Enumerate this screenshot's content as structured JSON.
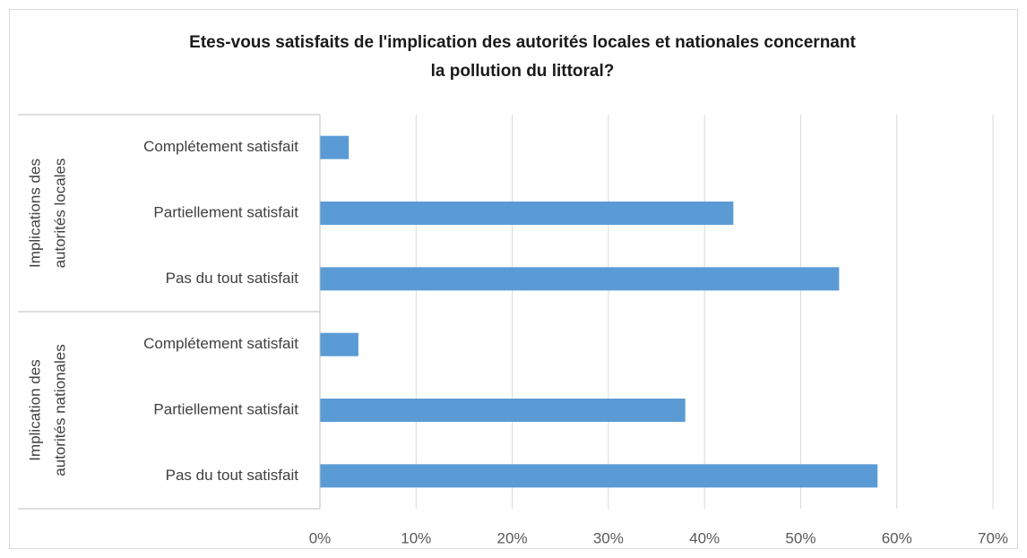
{
  "chart_data": {
    "type": "grouped-hbar",
    "title": [
      "Etes-vous satisfaits de l'implication des autorités locales et nationales concernant",
      "la pollution du littoral?"
    ],
    "color": "#5b9bd5",
    "groups": [
      {
        "label": [
          "Implications des",
          "autorités locales"
        ],
        "categories": [
          "Complétement satisfait",
          "Partiellement satisfait",
          "Pas du tout satisfait"
        ],
        "values": [
          3,
          43,
          54
        ]
      },
      {
        "label": [
          "Implication des",
          "autorités nationales"
        ],
        "categories": [
          "Complétement satisfait",
          "Partiellement satisfait",
          "Pas du tout satisfait"
        ],
        "values": [
          4,
          38,
          58
        ]
      }
    ],
    "xlim": [
      0,
      70
    ],
    "xticks": [
      {
        "value": 0,
        "label": "0%"
      },
      {
        "value": 10,
        "label": "10%"
      },
      {
        "value": 20,
        "label": "20%"
      },
      {
        "value": 30,
        "label": "30%"
      },
      {
        "value": 40,
        "label": "40%"
      },
      {
        "value": 50,
        "label": "50%"
      },
      {
        "value": 60,
        "label": "60%"
      },
      {
        "value": 70,
        "label": "70%"
      }
    ],
    "grid": true
  }
}
